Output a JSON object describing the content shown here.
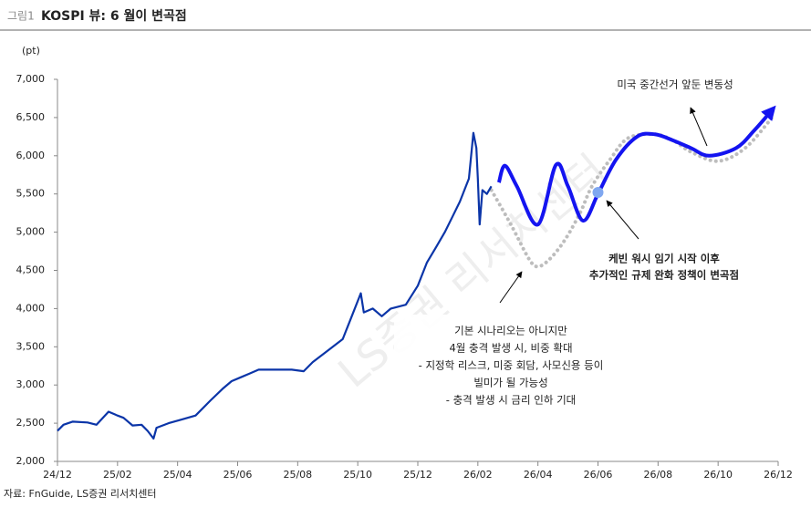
{
  "chart_data": {
    "type": "line",
    "figure_label": "그림1",
    "title": "KOSPI 뷰: 6 월이 변곡점",
    "y_axis_label": "(pt)",
    "source": "자료: FnGuide, LS증권 리서치센터",
    "watermark": "LS증권 리서치센터",
    "xlim": [
      0,
      24
    ],
    "xticks": [
      {
        "value": 0,
        "label": "24/12"
      },
      {
        "value": 2,
        "label": "25/02"
      },
      {
        "value": 4,
        "label": "25/04"
      },
      {
        "value": 6,
        "label": "25/06"
      },
      {
        "value": 8,
        "label": "25/08"
      },
      {
        "value": 10,
        "label": "25/10"
      },
      {
        "value": 12,
        "label": "25/12"
      },
      {
        "value": 14,
        "label": "26/02"
      },
      {
        "value": 16,
        "label": "26/04"
      },
      {
        "value": 18,
        "label": "26/06"
      },
      {
        "value": 20,
        "label": "26/08"
      },
      {
        "value": 22,
        "label": "26/10"
      },
      {
        "value": 24,
        "label": "26/12"
      }
    ],
    "ylim": [
      2000,
      7000
    ],
    "yticks": [
      {
        "value": 2000,
        "label": "2,000"
      },
      {
        "value": 2500,
        "label": "2,500"
      },
      {
        "value": 3000,
        "label": "3,000"
      },
      {
        "value": 3500,
        "label": "3,500"
      },
      {
        "value": 4000,
        "label": "4,000"
      },
      {
        "value": 4500,
        "label": "4,500"
      },
      {
        "value": 5000,
        "label": "5,000"
      },
      {
        "value": 5500,
        "label": "5,500"
      },
      {
        "value": 6000,
        "label": "6,000"
      },
      {
        "value": 6500,
        "label": "6,500"
      },
      {
        "value": 7000,
        "label": "7,000"
      }
    ],
    "grid": false,
    "series": [
      {
        "color": "#bdbdbd",
        "style": "dotted",
        "smooth": true,
        "width": 4,
        "x": [
          14.45,
          15.1,
          15.7,
          16,
          16.4,
          16.9,
          17.4,
          17.8,
          18.4,
          19,
          19.9,
          20.5,
          21.1,
          22,
          22.9,
          23.8
        ],
        "values": [
          5550,
          5100,
          4650,
          4550,
          4650,
          4900,
          5250,
          5600,
          5950,
          6230,
          6280,
          6200,
          6050,
          5930,
          6100,
          6500
        ]
      },
      {
        "color": "#0b35a8",
        "style": "solid",
        "smooth": false,
        "width": 2.2,
        "x": [
          0,
          0.2,
          0.5,
          1,
          1.3,
          1.7,
          2,
          2.2,
          2.5,
          2.8,
          3,
          3.2,
          3.3,
          3.7,
          4.15,
          4.6,
          5.1,
          5.5,
          5.8,
          6.1,
          6.4,
          6.7,
          7.2,
          7.8,
          8.2,
          8.5,
          9,
          9.5,
          9.8,
          10.1,
          10.2,
          10.5,
          10.8,
          11.1,
          11.6,
          12,
          12.3,
          12.6,
          12.9,
          13.15,
          13.4,
          13.7,
          13.85,
          13.95,
          14,
          14.06,
          14.15,
          14.3,
          14.45
        ],
        "values": [
          2400,
          2480,
          2520,
          2510,
          2480,
          2650,
          2600,
          2570,
          2470,
          2480,
          2400,
          2300,
          2440,
          2500,
          2550,
          2600,
          2800,
          2950,
          3050,
          3100,
          3150,
          3200,
          3200,
          3200,
          3180,
          3300,
          3450,
          3600,
          3900,
          4200,
          3950,
          4000,
          3900,
          4000,
          4050,
          4300,
          4600,
          4800,
          5000,
          5200,
          5400,
          5700,
          6300,
          6100,
          5700,
          5100,
          5550,
          5500,
          5600
        ]
      },
      {
        "color": "#1414f0",
        "style": "solid",
        "smooth": true,
        "width": 4,
        "arrow": true,
        "x": [
          14.7,
          14.9,
          15.3,
          16,
          16.6,
          17,
          17.5,
          18,
          18.6,
          19.3,
          19.9,
          20.5,
          21.1,
          21.7,
          22.6,
          23.2,
          23.8
        ],
        "values": [
          5650,
          5870,
          5600,
          5100,
          5880,
          5600,
          5150,
          5500,
          5950,
          6250,
          6280,
          6200,
          6100,
          6000,
          6100,
          6330,
          6600
        ]
      }
    ],
    "marker": {
      "x": 18,
      "value": 5520,
      "color": "#7fa7f0"
    },
    "annotations": [
      {
        "lines": [
          "미국 중간선거 앞둔 변동성"
        ]
      },
      {
        "lines": [
          "케빈 워시 임기 시작 이후",
          "추가적인 규제 완화 정책이 변곡점"
        ]
      },
      {
        "lines": [
          "기본 시나리오는 아니지만",
          "4월 충격 발생 시, 비중 확대",
          "- 지정학 리스크, 미중 회담, 사모신용 등이",
          "빌미가 될 가능성",
          "- 충격 발생 시 금리 인하 기대"
        ]
      }
    ]
  }
}
